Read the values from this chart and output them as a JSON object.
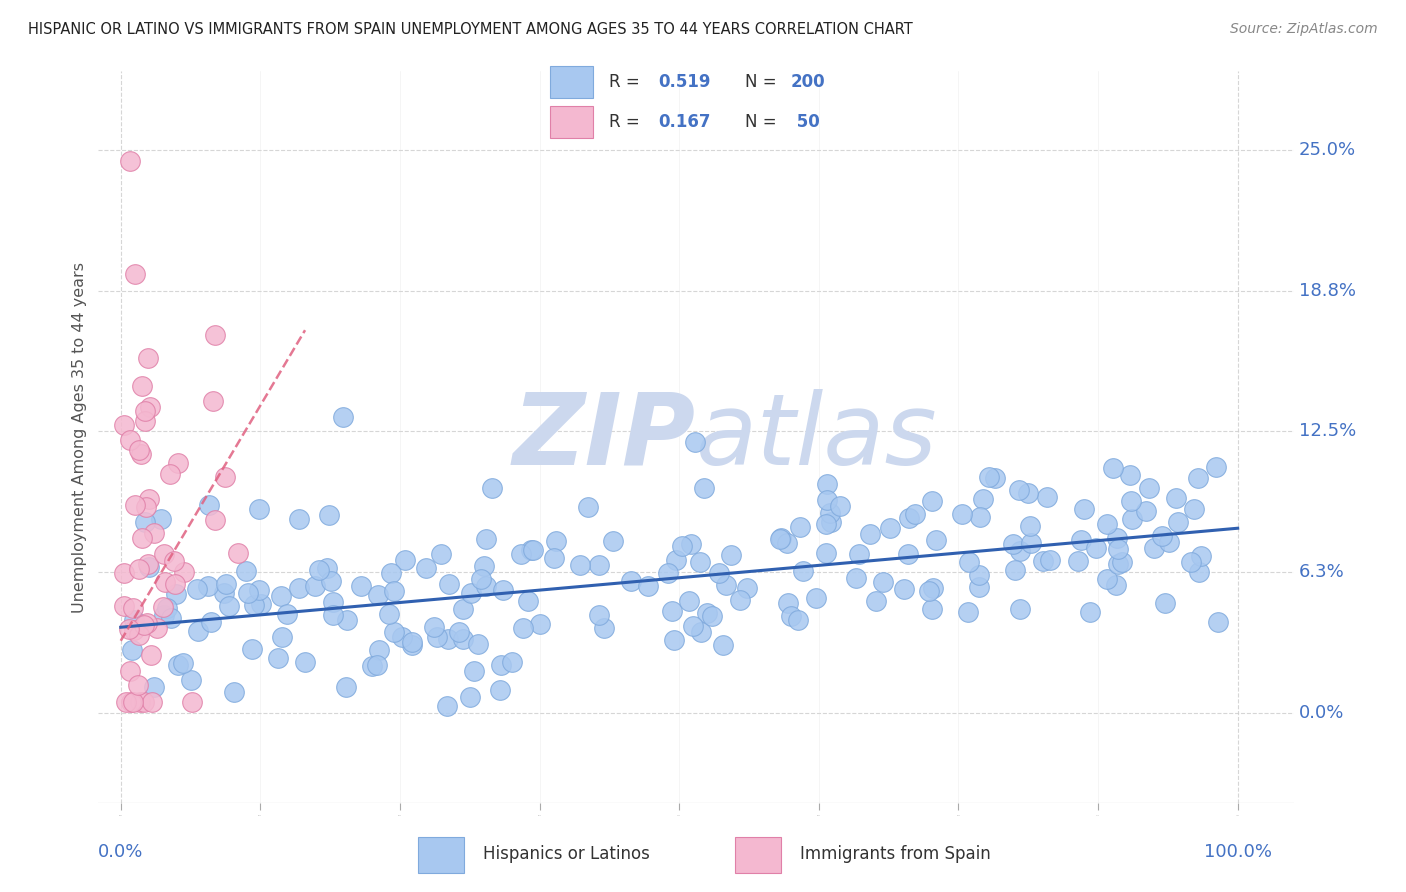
{
  "title": "HISPANIC OR LATINO VS IMMIGRANTS FROM SPAIN UNEMPLOYMENT AMONG AGES 35 TO 44 YEARS CORRELATION CHART",
  "source": "Source: ZipAtlas.com",
  "ylabel": "Unemployment Among Ages 35 to 44 years",
  "xlim": [
    -0.02,
    1.05
  ],
  "ylim": [
    -0.04,
    0.285
  ],
  "ytick_vals": [
    0.0,
    0.0625,
    0.125,
    0.1875,
    0.25
  ],
  "ytick_labels": [
    "0.0%",
    "6.3%",
    "12.5%",
    "18.8%",
    "25.0%"
  ],
  "xtick_labels": [
    "0.0%",
    "100.0%"
  ],
  "blue_color": "#a8c8f0",
  "blue_edge_color": "#80aadd",
  "pink_color": "#f4b8d0",
  "pink_edge_color": "#e080a8",
  "blue_line_color": "#3060b0",
  "pink_line_color": "#e06080",
  "legend_label1": "Hispanics or Latinos",
  "legend_label2": "Immigrants from Spain",
  "watermark_zip": "ZIP",
  "watermark_atlas": "atlas",
  "watermark_color": "#ccd8ee",
  "grid_color": "#cccccc",
  "background_color": "#ffffff",
  "title_color": "#222222",
  "axis_label_color": "#555555",
  "tick_color": "#4472c4",
  "source_color": "#888888",
  "blue_trend_x": [
    0.0,
    1.0
  ],
  "blue_trend_y": [
    0.038,
    0.082
  ],
  "pink_trend_x": [
    0.0,
    0.165
  ],
  "pink_trend_y": [
    0.032,
    0.17
  ]
}
